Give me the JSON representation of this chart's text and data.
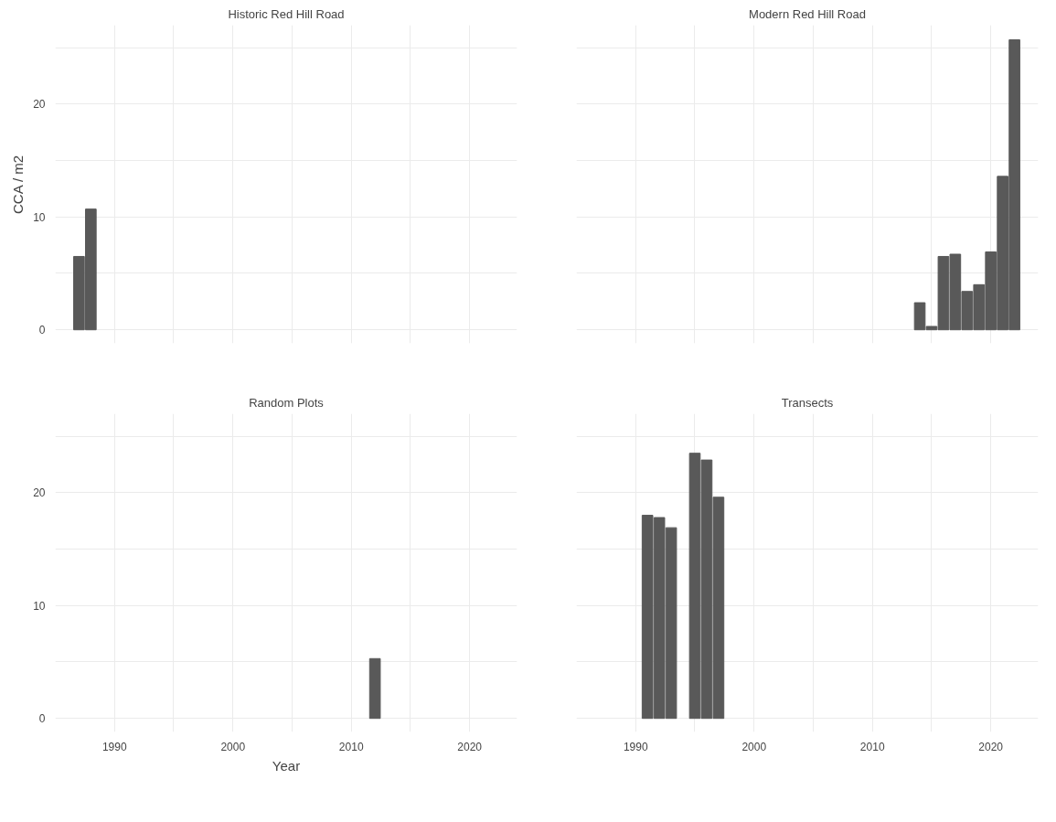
{
  "chart_data": [
    {
      "type": "bar",
      "title": "Historic Red Hill Road",
      "ylabel": "CCA / m2",
      "x": [
        1987,
        1988
      ],
      "values": [
        6.5,
        10.7
      ],
      "color": "#595959",
      "xlim": [
        1985,
        2024
      ],
      "ylim": [
        -1.2,
        27
      ],
      "xticks": [
        1990,
        {
          "value": 1995,
          "label": null
        },
        2000,
        {
          "value": 2005,
          "label": null
        },
        2010,
        {
          "value": 2015,
          "label": null
        },
        2020
      ],
      "yticks": [
        0,
        {
          "value": 5,
          "label": null
        },
        10,
        {
          "value": 15,
          "label": null
        },
        20,
        {
          "value": 25,
          "label": null
        }
      ],
      "grid": true,
      "tick_labels": "y"
    },
    {
      "type": "bar",
      "title": "Modern Red Hill Road",
      "x": [
        2014,
        2015,
        2016,
        2017,
        2018,
        2019,
        2020,
        2021,
        2022
      ],
      "values": [
        2.4,
        0.3,
        6.5,
        6.7,
        3.4,
        4.0,
        6.9,
        13.6,
        25.7
      ],
      "color": "#595959",
      "xlim": [
        1985,
        2024
      ],
      "ylim": [
        -1.2,
        27
      ],
      "xticks": [
        1990,
        {
          "value": 1995,
          "label": null
        },
        2000,
        {
          "value": 2005,
          "label": null
        },
        2010,
        {
          "value": 2015,
          "label": null
        },
        2020
      ],
      "yticks": [
        0,
        {
          "value": 5,
          "label": null
        },
        10,
        {
          "value": 15,
          "label": null
        },
        20,
        {
          "value": 25,
          "label": null
        }
      ],
      "grid": true,
      "tick_labels": false
    },
    {
      "type": "bar",
      "title": "Random Plots",
      "xlabel": "Year",
      "x": [
        2012
      ],
      "values": [
        5.3
      ],
      "color": "#595959",
      "xlim": [
        1985,
        2024
      ],
      "ylim": [
        -1.2,
        27
      ],
      "xticks": [
        1990,
        {
          "value": 1995,
          "label": null
        },
        2000,
        {
          "value": 2005,
          "label": null
        },
        2010,
        {
          "value": 2015,
          "label": null
        },
        2020
      ],
      "yticks": [
        0,
        {
          "value": 5,
          "label": null
        },
        10,
        {
          "value": 15,
          "label": null
        },
        20,
        {
          "value": 25,
          "label": null
        }
      ],
      "grid": true
    },
    {
      "type": "bar",
      "title": "Transects",
      "x": [
        1991,
        1992,
        1993,
        1995,
        1996,
        1997
      ],
      "values": [
        18.0,
        17.8,
        16.9,
        23.5,
        22.9,
        19.6
      ],
      "color": "#595959",
      "xlim": [
        1985,
        2024
      ],
      "ylim": [
        -1.2,
        27
      ],
      "xticks": [
        1990,
        {
          "value": 1995,
          "label": null
        },
        2000,
        {
          "value": 2005,
          "label": null
        },
        2010,
        {
          "value": 2015,
          "label": null
        },
        2020
      ],
      "yticks": [
        0,
        {
          "value": 5,
          "label": null
        },
        10,
        {
          "value": 15,
          "label": null
        },
        20,
        {
          "value": 25,
          "label": null
        }
      ],
      "grid": true,
      "tick_labels": "x"
    }
  ]
}
